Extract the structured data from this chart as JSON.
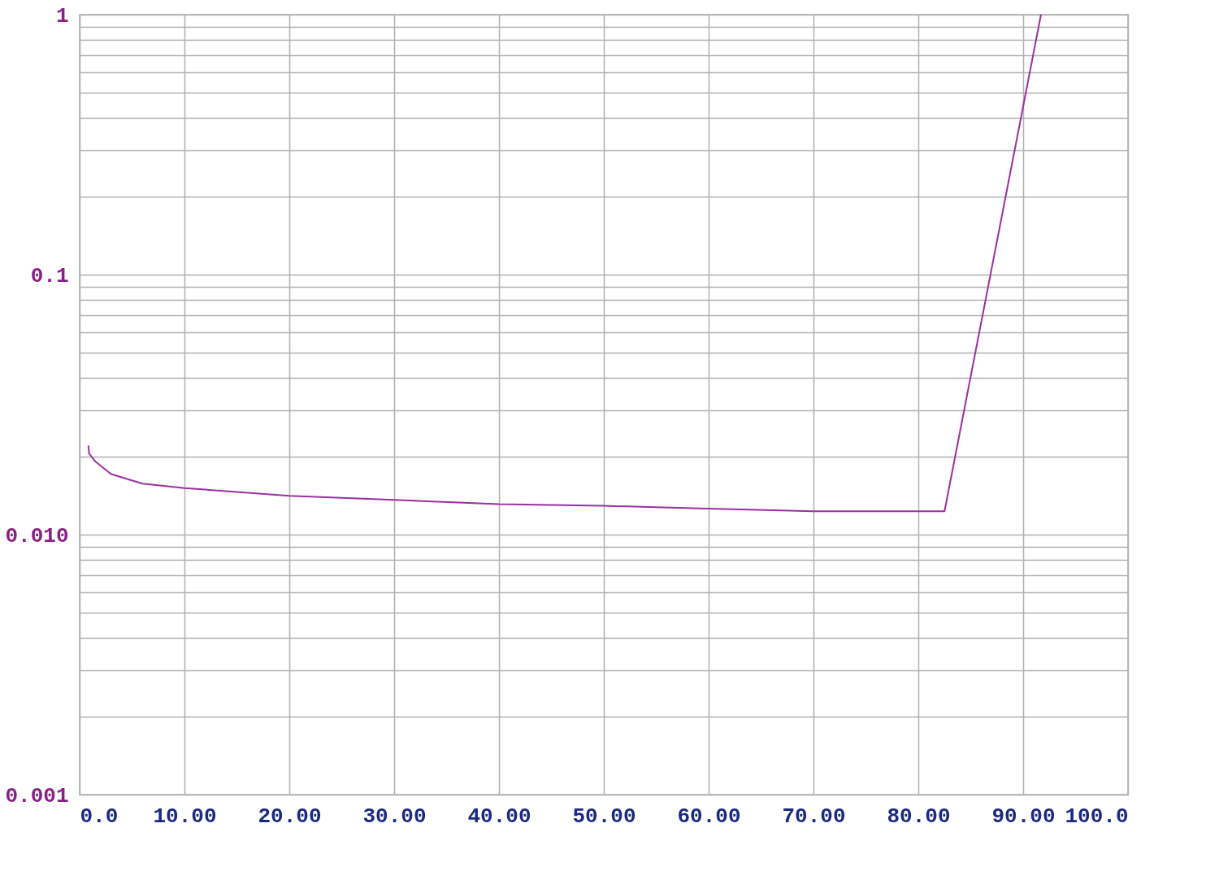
{
  "chart_data": {
    "type": "line",
    "log": "y",
    "grid": true,
    "marker": "none",
    "line_style": "solid",
    "x": [
      0.84,
      0.9,
      1.5,
      3,
      6,
      10,
      20,
      30,
      40,
      50,
      60,
      70,
      82.5,
      91.7
    ],
    "series": [
      {
        "color": "#9b2fa0",
        "values": [
          0.022,
          0.0205,
          0.0191,
          0.0171,
          0.0157,
          0.0151,
          0.0141,
          0.0136,
          0.0131,
          0.0129,
          0.0126,
          0.0123,
          0.0123,
          1
        ]
      }
    ],
    "xlim": [
      0,
      100
    ],
    "xticks": [
      {
        "value": 0,
        "label": "0.0"
      },
      {
        "value": 10,
        "label": "10.00"
      },
      {
        "value": 20,
        "label": "20.00"
      },
      {
        "value": 30,
        "label": "30.00"
      },
      {
        "value": 40,
        "label": "40.00"
      },
      {
        "value": 50,
        "label": "50.00"
      },
      {
        "value": 60,
        "label": "60.00"
      },
      {
        "value": 70,
        "label": "70.00"
      },
      {
        "value": 80,
        "label": "80.00"
      },
      {
        "value": 90,
        "label": "90.00"
      },
      {
        "value": 100,
        "label": "100.0"
      }
    ],
    "ylim": [
      0.001,
      1
    ],
    "yticks": [
      0.001,
      {
        "value": 0.002,
        "label": null
      },
      {
        "value": 0.003,
        "label": null
      },
      {
        "value": 0.004,
        "label": null
      },
      {
        "value": 0.005,
        "label": null
      },
      {
        "value": 0.006,
        "label": null
      },
      {
        "value": 0.007,
        "label": null
      },
      {
        "value": 0.008,
        "label": null
      },
      {
        "value": 0.009,
        "label": null
      },
      {
        "value": 0.01,
        "label": "0.010"
      },
      {
        "value": 0.02,
        "label": null
      },
      {
        "value": 0.03,
        "label": null
      },
      {
        "value": 0.04,
        "label": null
      },
      {
        "value": 0.05,
        "label": null
      },
      {
        "value": 0.06,
        "label": null
      },
      {
        "value": 0.07,
        "label": null
      },
      {
        "value": 0.08,
        "label": null
      },
      {
        "value": 0.09,
        "label": null
      },
      0.1,
      {
        "value": 0.2,
        "label": null
      },
      {
        "value": 0.3,
        "label": null
      },
      {
        "value": 0.4,
        "label": null
      },
      {
        "value": 0.5,
        "label": null
      },
      {
        "value": 0.6,
        "label": null
      },
      {
        "value": 0.7,
        "label": null
      },
      {
        "value": 0.8,
        "label": null
      },
      {
        "value": 0.9,
        "label": null
      },
      1
    ]
  }
}
